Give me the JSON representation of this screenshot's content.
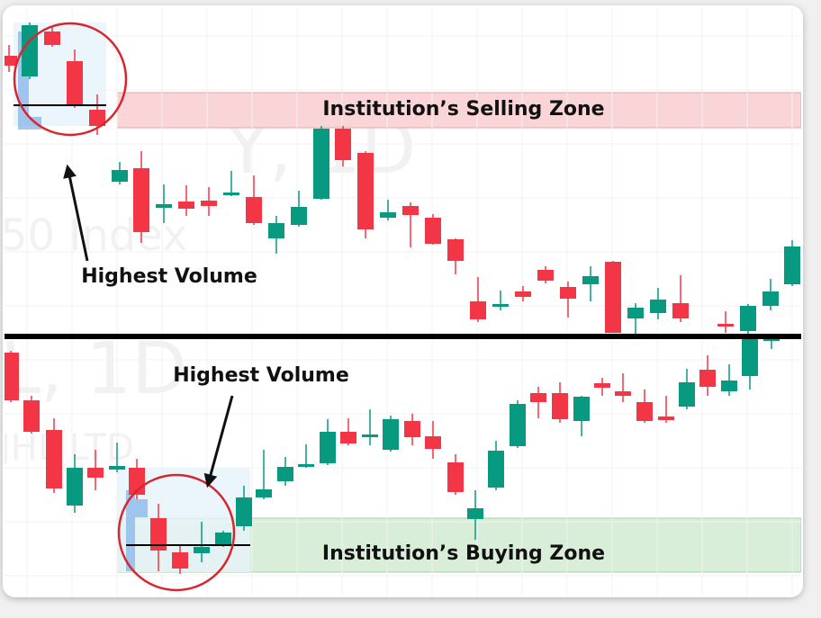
{
  "panels": [
    {
      "zone_label": "Institution’s Selling Zone",
      "annotation": "Highest Volume",
      "watermarks": [
        "Y, 1D",
        "50 Index"
      ]
    },
    {
      "zone_label": "Institution’s Buying Zone",
      "annotation": "Highest Volume",
      "watermarks": [
        "L, 1D",
        "JHL LTD"
      ]
    }
  ]
}
